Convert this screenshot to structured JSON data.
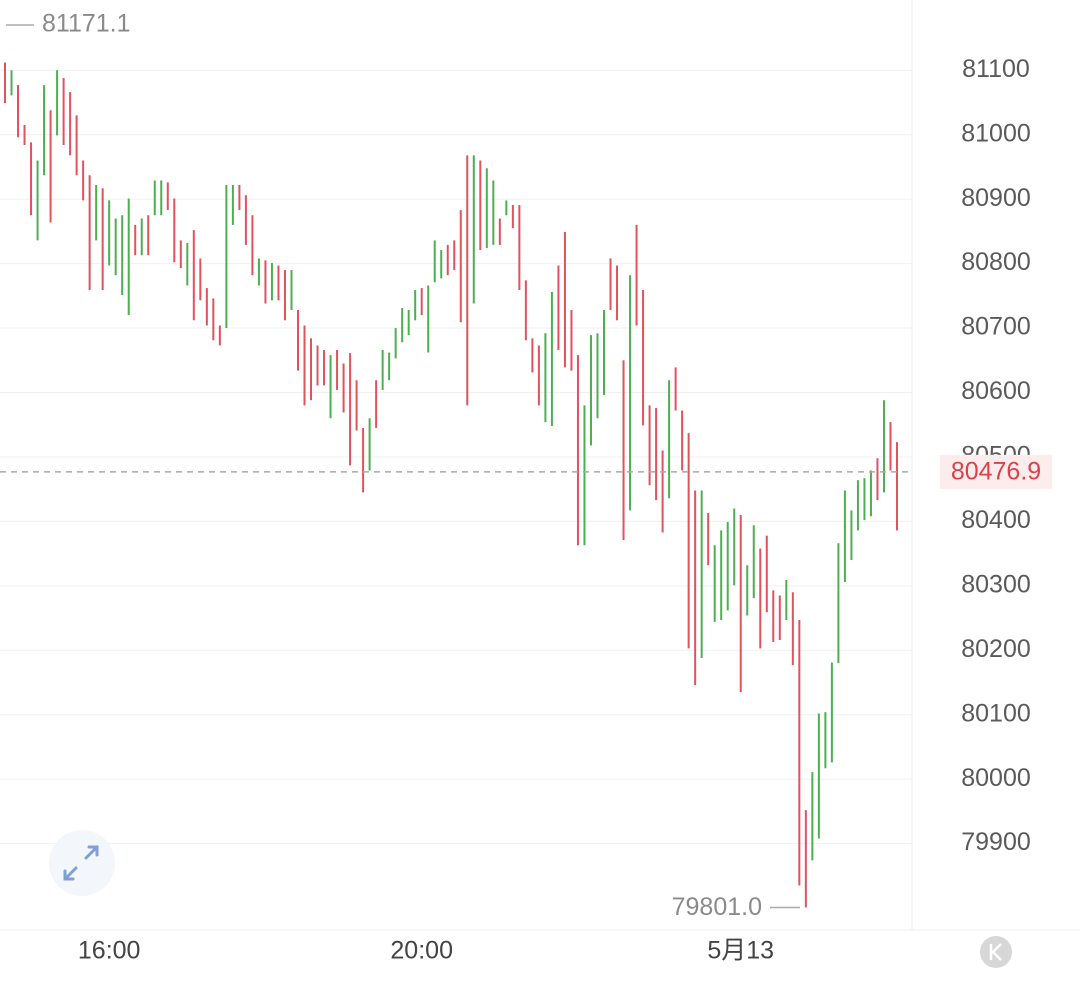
{
  "chart_data": {
    "type": "ohlc-range",
    "categories": [
      null,
      null,
      null,
      null,
      null,
      null,
      null,
      null,
      null,
      null,
      null,
      null,
      null,
      null,
      null,
      null,
      "16:00",
      null,
      null,
      null,
      null,
      null,
      null,
      null,
      null,
      null,
      null,
      null,
      null,
      null,
      null,
      null,
      null,
      null,
      null,
      null,
      null,
      null,
      null,
      null,
      null,
      null,
      null,
      null,
      null,
      null,
      null,
      null,
      null,
      null,
      null,
      null,
      null,
      null,
      null,
      null,
      null,
      null,
      null,
      null,
      null,
      null,
      null,
      null,
      "20:00",
      null,
      null,
      null,
      null,
      null,
      null,
      null,
      null,
      null,
      null,
      null,
      null,
      null,
      null,
      null,
      null,
      null,
      null,
      null,
      null,
      null,
      null,
      null,
      null,
      null,
      null,
      null,
      null,
      null,
      null,
      null,
      null,
      null,
      null,
      null,
      null,
      null,
      null,
      null,
      null,
      null,
      null,
      null,
      null,
      null,
      null,
      null,
      null,
      "5月13",
      null,
      null,
      null,
      null,
      null,
      null,
      null,
      null,
      null,
      null,
      null,
      null,
      null,
      null,
      null,
      null,
      null,
      null,
      null,
      null,
      null,
      null,
      null,
      null
    ],
    "high": [
      81112,
      81100,
      81077,
      81015,
      80988,
      80960,
      81077,
      81038,
      81100,
      81088,
      81066,
      81030,
      80960,
      80937,
      80922,
      80917,
      80898,
      80870,
      80875,
      80901,
      80860,
      80870,
      80875,
      80929,
      80929,
      80926,
      80901,
      80836,
      80832,
      80852,
      80808,
      80762,
      80746,
      80704,
      80922,
      80922,
      80922,
      80906,
      80875,
      80808,
      80805,
      80801,
      80797,
      80790,
      80790,
      80728,
      80704,
      80684,
      80673,
      80666,
      80658,
      80666,
      80645,
      80661,
      80619,
      80545,
      80560,
      80619,
      80666,
      80662,
      80700,
      80731,
      80728,
      80759,
      80762,
      80766,
      80836,
      80821,
      80829,
      80836,
      80883,
      80968,
      80968,
      80960,
      80948,
      80929,
      80870,
      80898,
      80891,
      80891,
      80774,
      80684,
      80673,
      80692,
      80756,
      80797,
      80849,
      80728,
      80658,
      80580,
      80689,
      80692,
      80728,
      80808,
      80797,
      80650,
      80782,
      80860,
      80759,
      80580,
      80576,
      80510,
      80619,
      80639,
      80572,
      80537,
      80448,
      80448,
      80413,
      80363,
      80386,
      80399,
      80420,
      80410,
      80332,
      80394,
      80358,
      80378,
      80293,
      80285,
      80309,
      80290,
      80247,
      79952,
      80011,
      80102,
      80104,
      80181,
      80366,
      80448,
      80417,
      80464,
      80467,
      80479,
      80498,
      80588,
      80554,
      80523
    ],
    "low": [
      81049,
      81061,
      80996,
      80984,
      80875,
      80836,
      80937,
      80864,
      80999,
      80984,
      80968,
      80937,
      80898,
      80759,
      80836,
      80759,
      80797,
      80782,
      80751,
      80720,
      80813,
      80813,
      80813,
      80875,
      80875,
      80883,
      80802,
      80793,
      80766,
      80712,
      80743,
      80704,
      80681,
      80673,
      80700,
      80860,
      80883,
      80829,
      80782,
      80766,
      80738,
      80743,
      80743,
      80712,
      80728,
      80634,
      80580,
      80588,
      80611,
      80611,
      80560,
      80604,
      80569,
      80487,
      80541,
      80445,
      80479,
      80545,
      80604,
      80619,
      80653,
      80678,
      80689,
      80712,
      80720,
      80662,
      80771,
      80777,
      80782,
      80790,
      80709,
      80580,
      80738,
      80821,
      80824,
      80829,
      80829,
      80875,
      80855,
      80759,
      80681,
      80631,
      80580,
      80554,
      80548,
      80666,
      80639,
      80634,
      80363,
      80363,
      80518,
      80560,
      80596,
      80728,
      80712,
      80371,
      80417,
      80704,
      80549,
      80456,
      80433,
      80383,
      80436,
      80572,
      80479,
      80203,
      80146,
      80188,
      80332,
      80244,
      80247,
      80262,
      80301,
      80135,
      80254,
      80281,
      80203,
      80259,
      80213,
      80216,
      80247,
      80177,
      79835,
      79801,
      79874,
      79908,
      80017,
      80026,
      80180,
      80306,
      80340,
      80386,
      80402,
      80408,
      80433,
      80445,
      80479,
      80386
    ],
    "rising": [
      false,
      true,
      false,
      false,
      false,
      true,
      true,
      false,
      true,
      false,
      false,
      false,
      false,
      false,
      true,
      false,
      true,
      true,
      true,
      true,
      false,
      true,
      false,
      true,
      true,
      false,
      false,
      false,
      true,
      false,
      false,
      false,
      false,
      false,
      true,
      true,
      false,
      false,
      false,
      true,
      false,
      true,
      false,
      false,
      true,
      false,
      false,
      false,
      false,
      false,
      true,
      false,
      false,
      false,
      false,
      false,
      true,
      false,
      true,
      true,
      true,
      true,
      true,
      true,
      false,
      true,
      true,
      true,
      false,
      false,
      false,
      false,
      true,
      false,
      true,
      true,
      false,
      true,
      false,
      false,
      false,
      false,
      false,
      true,
      true,
      false,
      false,
      false,
      false,
      true,
      true,
      true,
      true,
      false,
      false,
      false,
      true,
      false,
      false,
      false,
      false,
      false,
      true,
      false,
      false,
      false,
      false,
      true,
      false,
      true,
      true,
      true,
      true,
      false,
      true,
      true,
      false,
      false,
      false,
      false,
      true,
      false,
      false,
      false,
      true,
      true,
      true,
      true,
      true,
      true,
      true,
      true,
      true,
      true,
      false,
      true,
      false,
      false
    ],
    "up_color": "#4caf50",
    "down_color": "#e0525c",
    "ylim": [
      79766,
      81209
    ],
    "yticks": [
      79900,
      80000,
      80100,
      80200,
      80300,
      80400,
      80500,
      80600,
      80700,
      80800,
      80900,
      81000,
      81100
    ],
    "grid": true,
    "max_label": 81171.1,
    "min_label": {
      "value": 79801,
      "label": "79801.0"
    },
    "last_price": 80476.9
  }
}
